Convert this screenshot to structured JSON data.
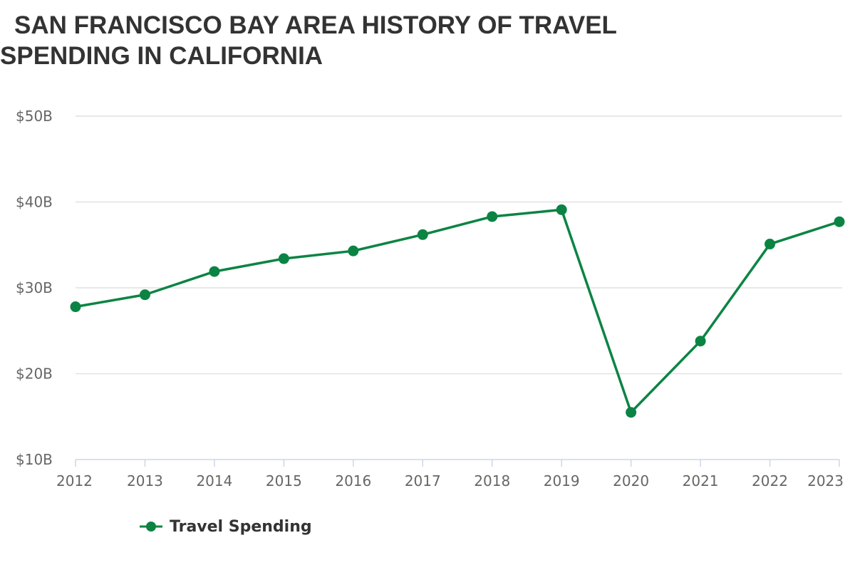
{
  "chart_data": {
    "type": "line",
    "title": "SAN FRANCISCO BAY AREA HISTORY OF TRAVEL SPENDING IN CALIFORNIA",
    "xlabel": "",
    "ylabel": "",
    "categories": [
      "2012",
      "2013",
      "2014",
      "2015",
      "2016",
      "2017",
      "2018",
      "2019",
      "2020",
      "2021",
      "2022",
      "2023"
    ],
    "series": [
      {
        "name": "Travel Spending",
        "color": "#0b8443",
        "values": [
          27.8,
          29.2,
          31.9,
          33.4,
          34.3,
          36.2,
          38.3,
          39.1,
          15.5,
          23.8,
          35.1,
          37.7
        ]
      }
    ],
    "ylim": [
      10,
      50
    ],
    "yticks": [
      10,
      20,
      30,
      40,
      50
    ],
    "ytick_labels": [
      "$10B",
      "$20B",
      "$30B",
      "$40B",
      "$50B"
    ],
    "grid": true,
    "legend_position": "bottom-left"
  }
}
